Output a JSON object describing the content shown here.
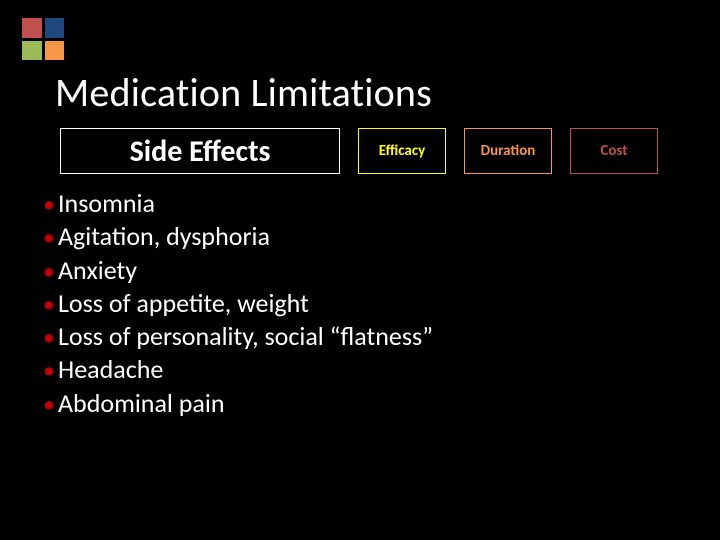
{
  "background_color": "#000000",
  "text_color": "#ffffff",
  "logo": {
    "top_left": "#c0504d",
    "top_right": "#1f497d",
    "bottom_left": "#9bbb59",
    "bottom_right": "#f79646"
  },
  "title": {
    "text": "Medication Limitations",
    "color": "#ffffff",
    "fontsize": 40
  },
  "tabs": {
    "active": {
      "label": "Side Effects",
      "color": "#ffffff",
      "border": "#ffffff",
      "fontsize": 30
    },
    "items": [
      {
        "label": "Efficacy",
        "color": "#ffff00",
        "border": "#ffff00"
      },
      {
        "label": "Duration",
        "color": "#f79646",
        "border": "#f79646"
      },
      {
        "label": "Cost",
        "color": "#c0504d",
        "border": "#c0504d"
      }
    ]
  },
  "bullets": {
    "dot_color": "#c00000",
    "text_color": "#ffffff",
    "items": [
      "Insomnia",
      "Agitation, dysphoria",
      "Anxiety",
      "Loss of appetite, weight",
      "Loss of personality, social “flatness”",
      "Headache",
      "Abdominal pain"
    ]
  }
}
